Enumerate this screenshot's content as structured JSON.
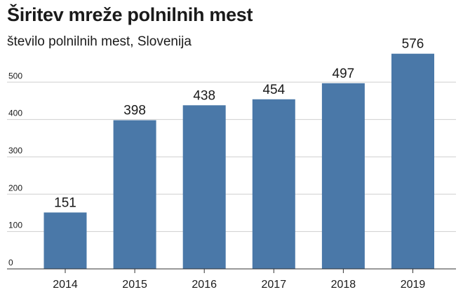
{
  "chart_data": {
    "type": "bar",
    "title": "Širitev mreže polnilnih mest",
    "subtitle": "število polnilnih mest, Slovenija",
    "categories": [
      "2014",
      "2015",
      "2016",
      "2017",
      "2018",
      "2019"
    ],
    "values": [
      151,
      398,
      438,
      454,
      497,
      576
    ],
    "data_labels": [
      "151",
      "398",
      "438",
      "454",
      "497",
      "576"
    ],
    "yticks": [
      0,
      100,
      200,
      300,
      400,
      500
    ],
    "ytick_labels": [
      "0",
      "100",
      "200",
      "300",
      "400",
      "500"
    ],
    "ylim": [
      0,
      600
    ],
    "grid": true,
    "bar_color": "#4a78a8",
    "grid_color": "#cfcfcf"
  }
}
